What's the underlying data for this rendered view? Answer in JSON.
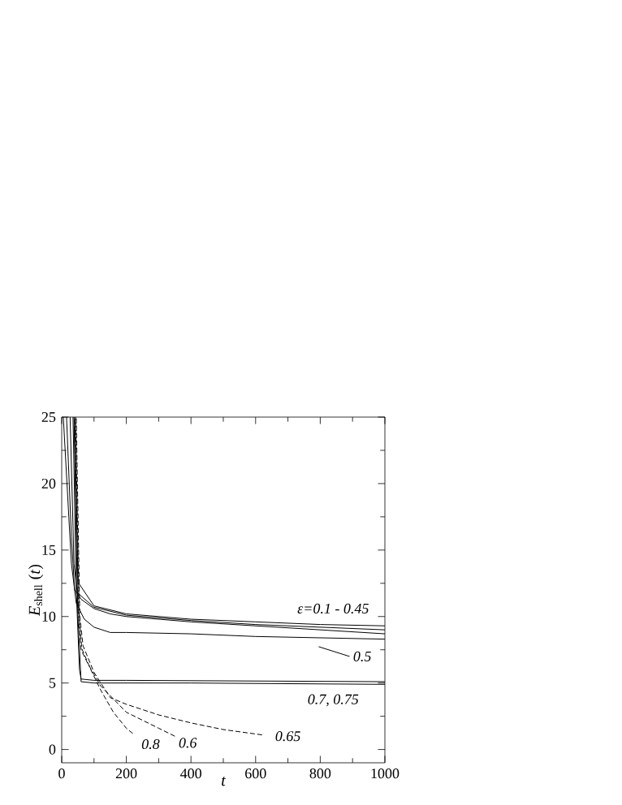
{
  "chart_data": {
    "type": "line",
    "xlabel": "t",
    "ylabel": "*E*$_{shell}$ (*t*)",
    "xlim": [
      0,
      1000
    ],
    "ylim": [
      -1,
      25
    ],
    "xticks": [
      0,
      200,
      400,
      600,
      800,
      1000
    ],
    "yticks": [
      0,
      5,
      10,
      15,
      20,
      25
    ],
    "marker": "none",
    "series": [
      {
        "color": "#000000",
        "line_style": "solid",
        "x": [
          15,
          30,
          40,
          60,
          100,
          150,
          200,
          400,
          600,
          800,
          1000
        ],
        "values": [
          25,
          16,
          12,
          11.3,
          10.6,
          10.2,
          10.0,
          9.6,
          9.3,
          9.0,
          8.7
        ]
      },
      {
        "color": "#000000",
        "line_style": "solid",
        "x": [
          26,
          38,
          48,
          100,
          200,
          400,
          600,
          800,
          1000
        ],
        "values": [
          25,
          14,
          11.8,
          10.7,
          10.1,
          9.7,
          9.4,
          9.2,
          9.0
        ]
      },
      {
        "color": "#000000",
        "line_style": "solid",
        "x": [
          40,
          50,
          100,
          200,
          400,
          600,
          800,
          1000
        ],
        "values": [
          25,
          12.6,
          10.8,
          10.2,
          9.8,
          9.6,
          9.4,
          9.3
        ]
      },
      {
        "color": "#000000",
        "line_style": "solid",
        "x": [
          5,
          30,
          45,
          70,
          100,
          150,
          200,
          400,
          600,
          800,
          1000
        ],
        "values": [
          25,
          14,
          11,
          9.8,
          9.2,
          8.8,
          8.8,
          8.7,
          8.5,
          8.4,
          8.3
        ]
      },
      {
        "color": "#000000",
        "line_style": "solid",
        "x": [
          35,
          45,
          55,
          60,
          100,
          200,
          1000
        ],
        "values": [
          25,
          12,
          6,
          5.3,
          5.2,
          5.2,
          5.1
        ]
      },
      {
        "color": "#000000",
        "line_style": "solid",
        "x": [
          38,
          50,
          60,
          100,
          400,
          1000
        ],
        "values": [
          25,
          10,
          5.1,
          5.0,
          5.0,
          4.9
        ]
      },
      {
        "color": "#000000",
        "line_style": "dashed",
        "x": [
          41,
          52,
          60,
          80,
          120,
          200,
          300,
          350
        ],
        "values": [
          25,
          10,
          7.5,
          6.5,
          4.8,
          2.8,
          1.6,
          1.0
        ]
      },
      {
        "color": "#000000",
        "line_style": "dashed",
        "x": [
          43,
          54,
          62,
          90,
          120,
          160,
          200,
          220
        ],
        "values": [
          25,
          10,
          7.6,
          6,
          4.5,
          2.8,
          1.6,
          1.2
        ]
      },
      {
        "color": "#000000",
        "line_style": "dashed",
        "x": [
          45,
          56,
          66,
          100,
          150,
          200,
          300,
          400,
          500,
          620
        ],
        "values": [
          25,
          10,
          7.8,
          5.8,
          3.9,
          3.4,
          2.6,
          2.0,
          1.5,
          1.1
        ]
      }
    ],
    "annotations": [
      "ε=0.1 - 0.45",
      "0.5",
      "0.7, 0.75",
      "0.65",
      "0.6",
      "0.8"
    ]
  }
}
